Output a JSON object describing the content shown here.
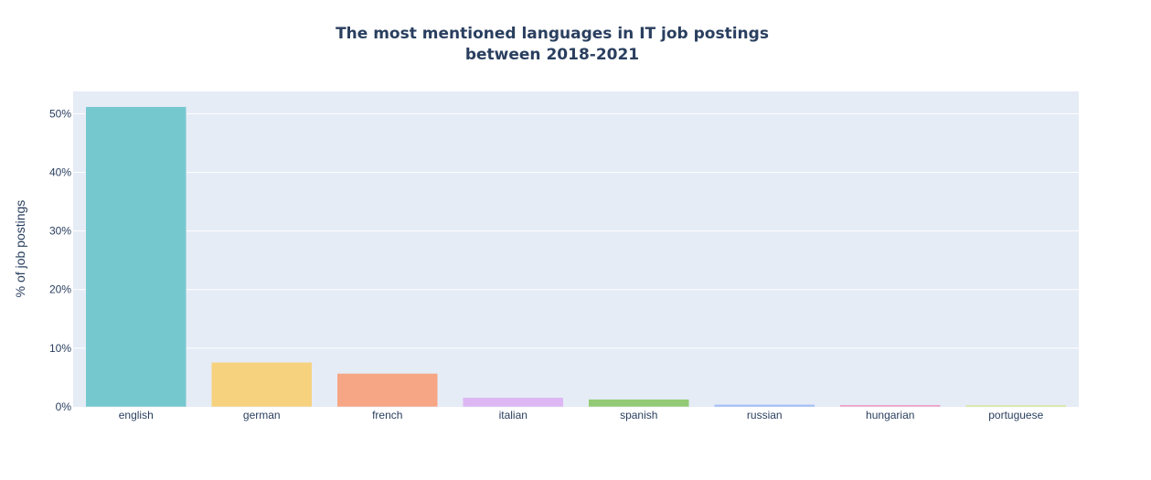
{
  "chart_data": {
    "type": "bar",
    "title_lines": [
      "The most mentioned languages in IT job postings",
      "between 2018-2021"
    ],
    "xlabel": "",
    "ylabel": "% of job postings",
    "categories": [
      "english",
      "german",
      "french",
      "italian",
      "spanish",
      "russian",
      "hungarian",
      "portuguese"
    ],
    "values": [
      51.2,
      7.6,
      5.7,
      1.6,
      1.3,
      0.4,
      0.35,
      0.3
    ],
    "colors": [
      "#76C8CF",
      "#F6D27F",
      "#F6A684",
      "#DDB7F3",
      "#93CA76",
      "#A3BDF5",
      "#F0A0C8",
      "#D6E58F"
    ],
    "ylim": [
      0,
      53.8
    ],
    "yticks": [
      0,
      10,
      20,
      30,
      40,
      50
    ],
    "ytick_labels": [
      "0%",
      "10%",
      "20%",
      "30%",
      "40%",
      "50%"
    ],
    "grid": true,
    "legend": "none",
    "plot_bg": "#E5ECF6",
    "text_color": "#2a3f5f"
  }
}
